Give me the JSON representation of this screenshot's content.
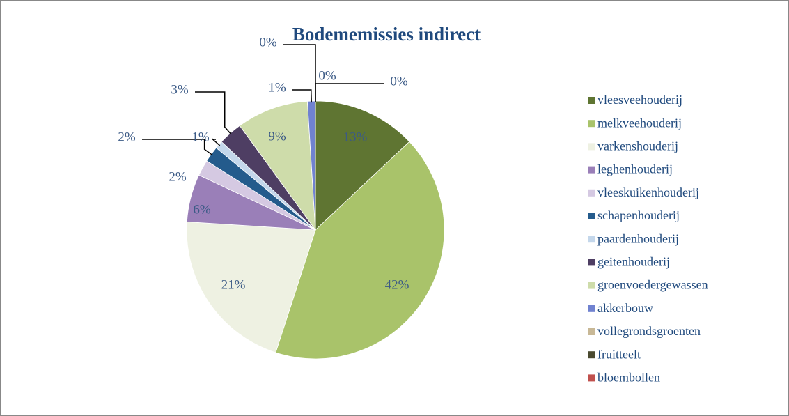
{
  "chart_data": {
    "type": "pie",
    "title": "Bodememissies indirect",
    "categories": [
      "vleesveehouderij",
      "melkveehouderij",
      "varkenshouderij",
      "leghenhouderij",
      "vleeskuikenhouderij",
      "schapenhouderij",
      "paardenhouderij",
      "geitenhouderij",
      "groenvoedergewassen",
      "akkerbouw",
      "vollegrondsgroenten",
      "fruitteelt",
      "bloembollen"
    ],
    "values": [
      13,
      42,
      21,
      6,
      2,
      2,
      1,
      3,
      9,
      1,
      0,
      0,
      0
    ],
    "value_labels": [
      "13%",
      "42%",
      "21%",
      "6%",
      "2%",
      "2%",
      "1%",
      "3%",
      "9%",
      "1%",
      "0%",
      "0%",
      "0%"
    ],
    "colors": [
      "#5f7532",
      "#a9c36a",
      "#eef1e2",
      "#9a7fb8",
      "#d5c9e2",
      "#245b8c",
      "#c4d7eb",
      "#4e3e63",
      "#cedcaa",
      "#7082d0",
      "#c8b896",
      "#4a4a30",
      "#c0504d"
    ],
    "legend": "right"
  }
}
